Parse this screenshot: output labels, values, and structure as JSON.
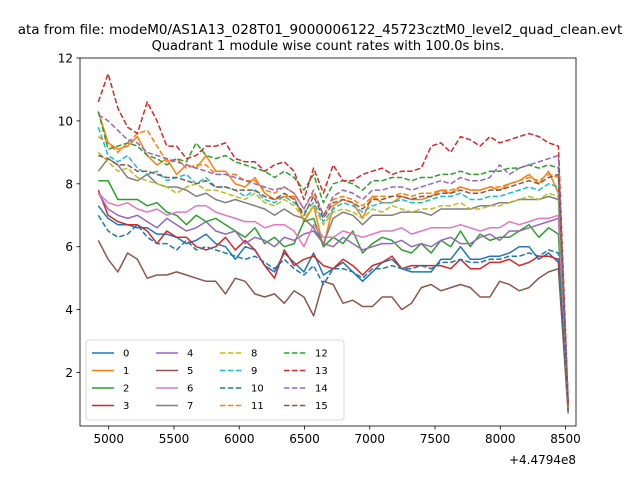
{
  "figure": {
    "suptitle": "ata from file: modeM0/AS1A13_028T01_9000006122_45723cztM0_level2_quad_clean.evt"
  },
  "chart_data": {
    "type": "line",
    "title": "Quadrant 1 module wise count rates with 100.0s bins.",
    "xlabel": "",
    "ylabel": "",
    "offset_text": "+4.4794e8",
    "xlim": [
      4780,
      8580
    ],
    "ylim": [
      0.3,
      12
    ],
    "xticks": [
      5000,
      5500,
      6000,
      6500,
      7000,
      7500,
      8000,
      8500
    ],
    "yticks": [
      2,
      4,
      6,
      8,
      10,
      12
    ],
    "legend_position": "lower-left",
    "legend_columns": 4,
    "x": [
      4920,
      4995,
      5070,
      5145,
      5220,
      5295,
      5370,
      5445,
      5520,
      5595,
      5670,
      5745,
      5820,
      5895,
      5970,
      6045,
      6120,
      6195,
      6270,
      6345,
      6420,
      6495,
      6570,
      6645,
      6720,
      6795,
      6870,
      6945,
      7020,
      7095,
      7170,
      7245,
      7320,
      7395,
      7470,
      7545,
      7620,
      7695,
      7770,
      7845,
      7920,
      7995,
      8070,
      8145,
      8220,
      8295,
      8370,
      8445,
      8520
    ],
    "series": [
      {
        "name": "0",
        "color": "#1f77b4",
        "style": "solid",
        "values": [
          7.3,
          6.9,
          6.7,
          6.7,
          6.6,
          6.6,
          6.4,
          6.4,
          6.3,
          6.1,
          6.2,
          6.4,
          6.1,
          6.0,
          5.6,
          6.0,
          5.9,
          5.4,
          5.2,
          5.8,
          5.5,
          5.2,
          5.8,
          5.1,
          5.3,
          5.5,
          5.2,
          4.9,
          5.2,
          5.5,
          5.6,
          5.3,
          5.2,
          5.2,
          5.2,
          5.6,
          5.6,
          6.0,
          5.6,
          5.6,
          5.7,
          5.7,
          5.8,
          6.0,
          6.0,
          5.6,
          5.8,
          5.5,
          1.0
        ]
      },
      {
        "name": "1",
        "color": "#ff7f0e",
        "style": "solid",
        "values": [
          10.3,
          9.3,
          9.1,
          9.2,
          9.5,
          8.9,
          8.6,
          8.8,
          8.3,
          8.6,
          8.5,
          8.9,
          8.4,
          8.4,
          8.0,
          7.9,
          8.2,
          7.7,
          7.5,
          7.6,
          7.6,
          6.8,
          7.3,
          6.0,
          7.3,
          7.5,
          7.4,
          6.9,
          7.6,
          7.4,
          7.4,
          7.6,
          7.5,
          7.5,
          7.6,
          7.8,
          7.7,
          7.9,
          7.8,
          7.8,
          7.9,
          7.8,
          8.0,
          8.1,
          8.3,
          8.0,
          8.4,
          7.7,
          0.9
        ]
      },
      {
        "name": "2",
        "color": "#2ca02c",
        "style": "solid",
        "values": [
          8.1,
          8.1,
          7.5,
          7.5,
          7.5,
          7.3,
          7.4,
          7.1,
          7.0,
          6.7,
          7.0,
          6.8,
          6.9,
          6.7,
          6.5,
          6.3,
          6.6,
          6.1,
          6.3,
          6.0,
          6.1,
          6.8,
          6.9,
          6.0,
          6.3,
          6.1,
          6.5,
          5.8,
          6.1,
          6.3,
          6.2,
          5.9,
          5.8,
          6.1,
          5.8,
          6.2,
          6.0,
          6.5,
          6.0,
          6.4,
          6.2,
          6.3,
          6.3,
          6.5,
          6.7,
          6.3,
          6.6,
          6.4,
          0.9
        ]
      },
      {
        "name": "3",
        "color": "#d62728",
        "style": "solid",
        "values": [
          7.8,
          7.0,
          6.8,
          6.7,
          6.7,
          6.5,
          6.1,
          6.5,
          6.3,
          6.3,
          6.0,
          5.9,
          6.0,
          6.3,
          5.9,
          6.2,
          5.9,
          5.4,
          5.0,
          5.9,
          5.4,
          5.6,
          5.7,
          5.4,
          5.3,
          5.6,
          5.4,
          5.1,
          5.4,
          5.5,
          5.7,
          5.3,
          5.4,
          5.4,
          5.4,
          5.4,
          5.3,
          5.6,
          5.3,
          5.3,
          5.5,
          5.5,
          5.6,
          5.4,
          5.5,
          5.7,
          5.7,
          5.6,
          0.8
        ]
      },
      {
        "name": "4",
        "color": "#9467bd",
        "style": "solid",
        "values": [
          7.7,
          7.2,
          7.0,
          6.9,
          7.0,
          6.8,
          6.6,
          6.9,
          6.7,
          6.5,
          6.6,
          6.8,
          6.5,
          6.4,
          6.5,
          6.1,
          6.3,
          6.2,
          6.0,
          6.3,
          6.2,
          6.4,
          6.5,
          6.1,
          6.0,
          6.3,
          6.1,
          5.9,
          6.0,
          6.1,
          6.1,
          6.2,
          6.0,
          6.1,
          6.0,
          6.2,
          6.3,
          6.1,
          6.1,
          6.3,
          6.4,
          6.2,
          6.5,
          6.5,
          6.6,
          6.7,
          6.8,
          6.9,
          0.9
        ]
      },
      {
        "name": "5",
        "color": "#8c564b",
        "style": "solid",
        "values": [
          6.2,
          5.6,
          5.2,
          5.8,
          5.6,
          5.0,
          5.1,
          5.1,
          5.2,
          5.1,
          5.0,
          4.9,
          4.9,
          4.5,
          5.0,
          4.9,
          4.5,
          4.4,
          4.5,
          4.2,
          4.6,
          4.4,
          3.8,
          4.9,
          4.8,
          4.2,
          4.3,
          4.1,
          4.1,
          4.4,
          4.4,
          4.0,
          4.2,
          4.7,
          4.8,
          4.6,
          4.7,
          4.8,
          4.7,
          4.4,
          4.4,
          4.9,
          4.8,
          4.6,
          4.7,
          5.0,
          5.2,
          5.3,
          0.7
        ]
      },
      {
        "name": "6",
        "color": "#e377c2",
        "style": "solid",
        "values": [
          7.7,
          7.4,
          7.3,
          7.4,
          7.2,
          7.1,
          7.2,
          7.0,
          7.1,
          7.1,
          7.3,
          7.3,
          7.1,
          7.0,
          6.9,
          6.8,
          6.8,
          6.6,
          6.7,
          6.7,
          6.5,
          6.0,
          6.7,
          6.3,
          6.3,
          6.5,
          6.4,
          6.3,
          6.4,
          6.5,
          6.5,
          6.6,
          6.4,
          6.5,
          6.6,
          6.6,
          6.6,
          6.7,
          6.6,
          6.5,
          6.6,
          6.6,
          6.8,
          6.7,
          6.8,
          6.9,
          6.9,
          7.0,
          0.9
        ]
      },
      {
        "name": "7",
        "color": "#7f7f7f",
        "style": "solid",
        "values": [
          8.4,
          8.8,
          8.6,
          8.2,
          8.1,
          8.3,
          8.0,
          7.9,
          7.9,
          7.8,
          7.6,
          7.7,
          7.5,
          7.4,
          7.5,
          7.4,
          7.3,
          7.2,
          7.0,
          7.2,
          7.0,
          6.9,
          6.6,
          6.1,
          6.9,
          7.1,
          7.0,
          6.7,
          7.0,
          7.0,
          7.0,
          7.1,
          7.1,
          7.1,
          7.0,
          7.2,
          7.2,
          7.2,
          7.2,
          7.3,
          7.3,
          7.4,
          7.4,
          7.5,
          7.5,
          7.5,
          7.6,
          7.5,
          0.9
        ]
      },
      {
        "name": "8",
        "color": "#bcbd22",
        "style": "dashed",
        "values": [
          9.0,
          8.7,
          8.4,
          8.5,
          8.2,
          8.1,
          8.0,
          7.9,
          7.7,
          7.9,
          8.0,
          7.8,
          7.8,
          7.7,
          7.6,
          7.5,
          7.7,
          7.4,
          7.3,
          7.5,
          7.3,
          6.9,
          7.3,
          6.7,
          7.1,
          7.2,
          7.1,
          6.9,
          7.2,
          7.1,
          7.3,
          7.2,
          7.1,
          7.2,
          7.2,
          7.3,
          7.3,
          7.4,
          7.2,
          7.2,
          7.3,
          7.3,
          7.4,
          7.5,
          7.6,
          7.5,
          7.7,
          7.6,
          0.9
        ]
      },
      {
        "name": "9",
        "color": "#17becf",
        "style": "dashed",
        "values": [
          9.8,
          8.9,
          8.7,
          8.9,
          8.5,
          8.3,
          8.4,
          8.1,
          8.2,
          8.3,
          8.0,
          8.2,
          7.9,
          7.9,
          7.8,
          7.6,
          7.8,
          7.5,
          7.4,
          7.6,
          7.4,
          7.1,
          7.4,
          6.8,
          7.2,
          7.4,
          7.3,
          7.1,
          7.3,
          7.4,
          7.4,
          7.5,
          7.4,
          7.4,
          7.5,
          7.6,
          7.6,
          7.7,
          7.5,
          7.5,
          7.6,
          7.6,
          7.7,
          7.8,
          7.9,
          7.8,
          8.0,
          7.9,
          0.9
        ]
      },
      {
        "name": "10",
        "color": "#1f77b4",
        "style": "dashed",
        "values": [
          7.0,
          6.5,
          6.3,
          6.4,
          6.7,
          6.3,
          6.1,
          6.1,
          5.9,
          6.2,
          5.9,
          6.0,
          5.9,
          5.8,
          5.7,
          5.6,
          5.7,
          5.5,
          5.3,
          5.6,
          5.3,
          5.1,
          5.4,
          4.8,
          5.3,
          5.3,
          5.2,
          5.0,
          5.3,
          5.3,
          5.4,
          5.3,
          5.3,
          5.4,
          5.3,
          5.5,
          5.5,
          5.6,
          5.5,
          5.5,
          5.6,
          5.6,
          5.7,
          5.7,
          5.8,
          5.7,
          5.9,
          5.8,
          0.8
        ]
      },
      {
        "name": "11",
        "color": "#ff7f0e",
        "style": "dashed",
        "values": [
          9.5,
          9.3,
          9.0,
          9.3,
          9.6,
          9.7,
          9.2,
          8.7,
          8.8,
          8.5,
          8.6,
          8.6,
          8.3,
          8.3,
          8.3,
          8.1,
          8.1,
          7.8,
          7.7,
          7.9,
          7.7,
          7.2,
          7.7,
          7.0,
          7.5,
          7.6,
          7.5,
          7.3,
          7.6,
          7.6,
          7.6,
          7.7,
          7.6,
          7.7,
          7.7,
          7.8,
          7.8,
          7.9,
          7.8,
          7.8,
          7.9,
          7.9,
          8.0,
          8.1,
          8.2,
          8.1,
          8.3,
          8.2,
          0.9
        ]
      },
      {
        "name": "12",
        "color": "#2ca02c",
        "style": "dashed",
        "values": [
          10.3,
          9.1,
          9.2,
          9.3,
          9.2,
          8.9,
          8.8,
          8.6,
          8.8,
          8.7,
          9.3,
          8.9,
          8.8,
          8.9,
          8.7,
          8.6,
          8.5,
          8.4,
          8.2,
          8.4,
          8.2,
          7.8,
          8.3,
          7.4,
          8.0,
          8.1,
          8.0,
          7.8,
          8.1,
          8.1,
          8.2,
          8.2,
          8.1,
          8.2,
          8.2,
          8.3,
          8.3,
          8.4,
          8.3,
          8.3,
          8.4,
          8.4,
          8.5,
          8.5,
          8.6,
          8.5,
          8.6,
          8.5,
          1.0
        ]
      },
      {
        "name": "13",
        "color": "#d62728",
        "style": "dashed",
        "values": [
          10.6,
          11.5,
          10.4,
          9.8,
          9.6,
          10.6,
          10.0,
          9.2,
          9.2,
          8.8,
          8.9,
          9.2,
          9.2,
          9.3,
          8.8,
          8.7,
          8.7,
          8.4,
          8.6,
          8.7,
          8.4,
          7.5,
          8.5,
          7.7,
          8.6,
          8.1,
          8.1,
          8.3,
          8.4,
          8.5,
          8.3,
          8.4,
          8.4,
          8.5,
          9.2,
          9.3,
          9.0,
          9.5,
          9.4,
          9.2,
          9.5,
          9.3,
          9.4,
          9.5,
          9.6,
          9.5,
          9.3,
          9.2,
          1.1
        ]
      },
      {
        "name": "14",
        "color": "#9467bd",
        "style": "dashed",
        "values": [
          10.2,
          10.0,
          9.7,
          9.4,
          9.3,
          9.0,
          8.9,
          8.8,
          8.7,
          8.6,
          8.5,
          8.4,
          8.3,
          8.3,
          8.2,
          8.1,
          8.0,
          7.9,
          7.8,
          7.9,
          7.7,
          7.2,
          7.8,
          7.0,
          7.6,
          7.8,
          7.7,
          7.5,
          7.8,
          7.8,
          7.9,
          7.9,
          7.8,
          7.9,
          8.0,
          8.1,
          8.0,
          8.2,
          8.1,
          8.1,
          8.2,
          8.6,
          8.3,
          8.5,
          8.6,
          8.7,
          8.8,
          8.9,
          1.0
        ]
      },
      {
        "name": "15",
        "color": "#8c564b",
        "style": "dashed",
        "values": [
          8.9,
          8.8,
          8.6,
          8.6,
          8.4,
          8.4,
          8.3,
          8.2,
          8.2,
          8.1,
          8.0,
          8.1,
          7.9,
          7.9,
          7.8,
          7.8,
          7.8,
          7.6,
          7.5,
          7.7,
          7.5,
          7.0,
          7.6,
          6.9,
          7.4,
          7.5,
          7.4,
          7.2,
          7.5,
          7.5,
          7.6,
          7.6,
          7.5,
          7.6,
          7.6,
          7.7,
          7.7,
          7.8,
          7.7,
          7.7,
          7.8,
          7.8,
          7.9,
          8.0,
          8.1,
          8.0,
          8.2,
          8.3,
          0.9
        ]
      }
    ]
  }
}
